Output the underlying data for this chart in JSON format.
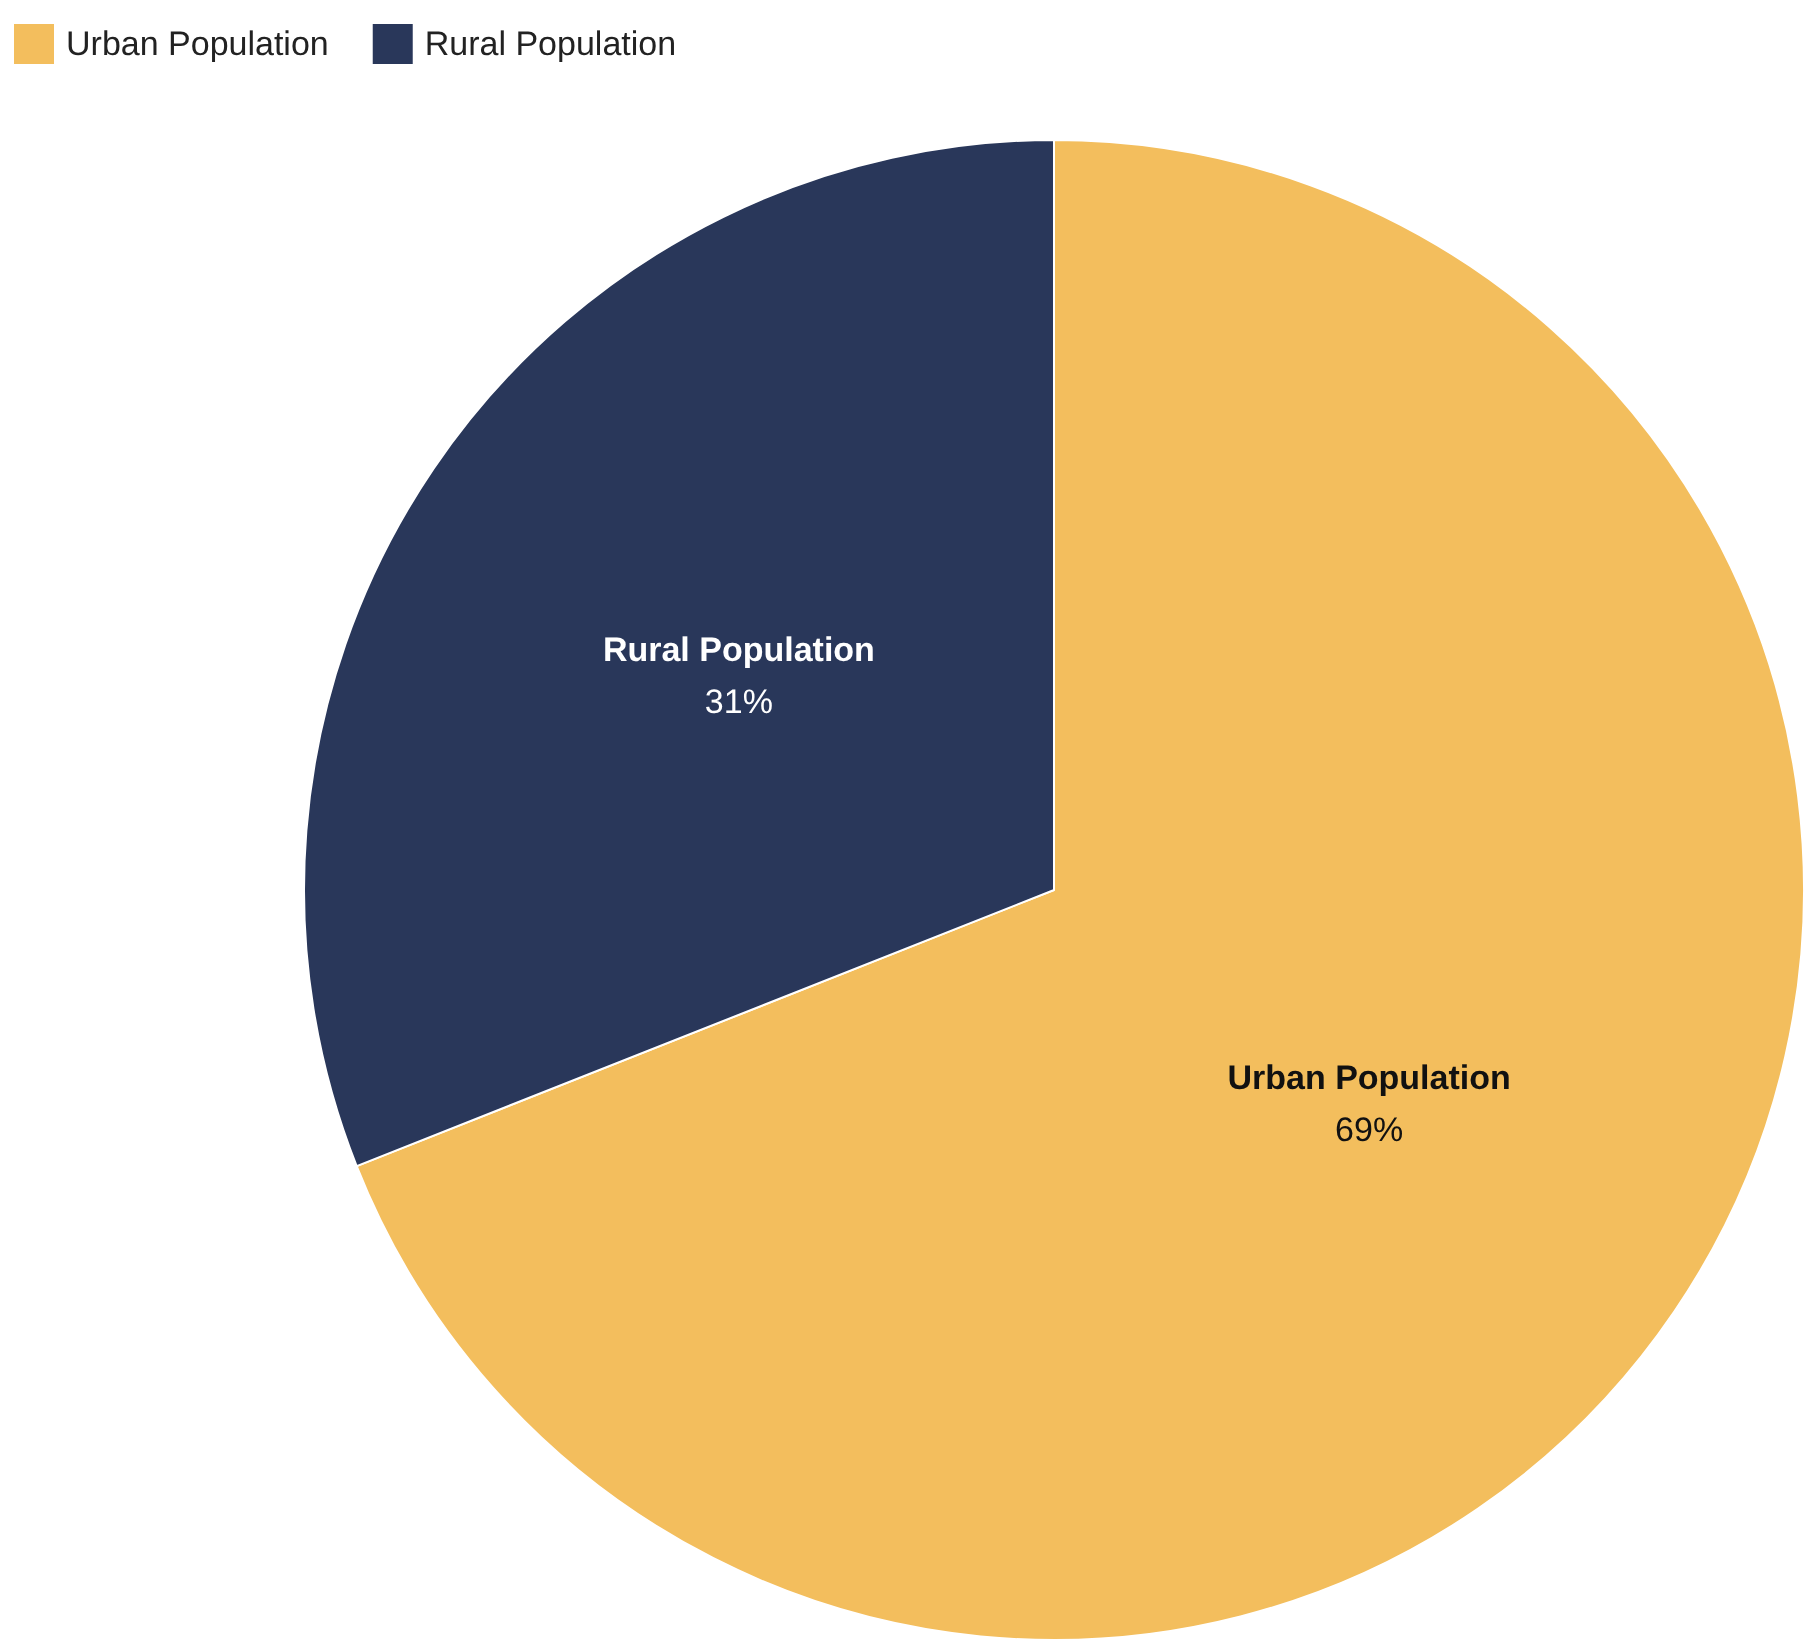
{
  "chart_data": {
    "type": "pie",
    "categories": [
      "Urban Population",
      "Rural Population"
    ],
    "values": [
      69,
      31
    ],
    "colors": [
      "#f3be5d",
      "#29375a"
    ],
    "value_labels": [
      "69%",
      "31%"
    ],
    "legend": "top left"
  }
}
